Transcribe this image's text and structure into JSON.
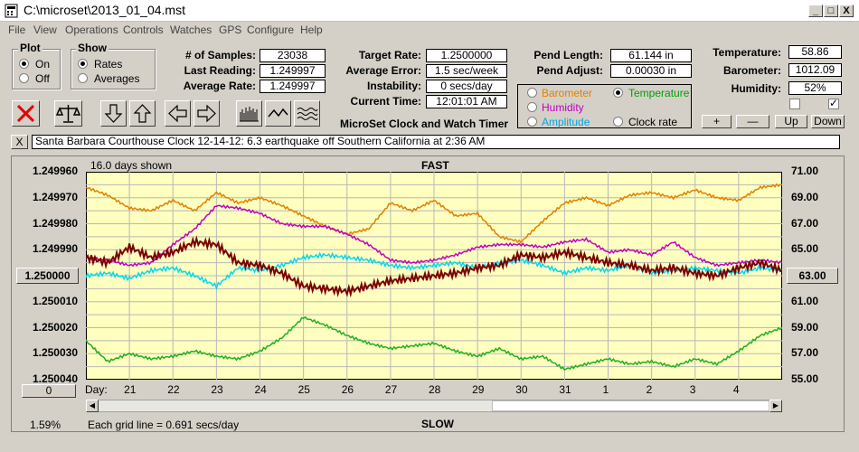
{
  "window": {
    "title": "C:\\microset\\2013_01_04.mst",
    "minimize": "_",
    "maximize": "□",
    "close": "X"
  },
  "menu": [
    "File",
    "View",
    "Operations",
    "Controls",
    "Watches",
    "GPS",
    "Configure",
    "Help"
  ],
  "plot_group": {
    "label": "Plot",
    "options": [
      "On",
      "Off"
    ],
    "selected": "On"
  },
  "show_group": {
    "label": "Show",
    "options": [
      "Rates",
      "Averages"
    ],
    "selected": "Rates"
  },
  "fields": {
    "num_samples": {
      "label": "# of Samples:",
      "value": "23038"
    },
    "last_reading": {
      "label": "Last Reading:",
      "value": "1.249997"
    },
    "average_rate": {
      "label": "Average Rate:",
      "value": "1.249997"
    },
    "target_rate": {
      "label": "Target Rate:",
      "value": "1.2500000"
    },
    "average_error": {
      "label": "Average Error:",
      "value": "1.5 sec/week"
    },
    "instability": {
      "label": "Instability:",
      "value": "0 secs/day"
    },
    "current_time": {
      "label": "Current Time:",
      "value": "12:01:01 AM"
    },
    "pend_length": {
      "label": "Pend Length:",
      "value": "61.144 in"
    },
    "pend_adjust": {
      "label": "Pend Adjust:",
      "value": "0.00030 in"
    },
    "temperature": {
      "label": "Temperature:",
      "value": "58.86"
    },
    "barometer": {
      "label": "Barometer:",
      "value": "1012.09"
    },
    "humidity": {
      "label": "Humidity:",
      "value": "52%"
    }
  },
  "app_caption": "MicroSet Clock and Watch Timer",
  "secondary": {
    "options": [
      {
        "label": "Barometer",
        "color": "#e08000",
        "selected": false
      },
      {
        "label": "Temperature",
        "color": "#00a000",
        "selected": true
      },
      {
        "label": "Humidity",
        "color": "#c000c0",
        "selected": false
      },
      {
        "label": "Amplitude",
        "color": "#00c0e0",
        "selected": false
      },
      {
        "label": "Clock rate",
        "color": "#000000",
        "selected": false
      }
    ]
  },
  "scale_buttons": [
    "+",
    "—",
    "Up",
    "Down"
  ],
  "checkboxes": [
    {
      "checked": false
    },
    {
      "checked": true
    }
  ],
  "note": {
    "close": "X",
    "text": "Santa Barbara Courthouse Clock        12-14-12: 6.3 earthquake off Southern California at 2:36 AM"
  },
  "chart": {
    "days_shown": "16.0 days shown",
    "top_label": "FAST",
    "bottom_label": "SLOW",
    "grid_note": "Each grid line = 0.691 secs/day",
    "percent": "1.59%",
    "left_button": "0",
    "center_left": "1.250000",
    "center_right": "63.00",
    "day_label": "Day:"
  },
  "chart_data": {
    "type": "line",
    "x_ticks": [
      "21",
      "22",
      "23",
      "24",
      "25",
      "26",
      "27",
      "28",
      "29",
      "30",
      "31",
      "1",
      "2",
      "3",
      "4"
    ],
    "y_left_ticks": [
      "1.249960",
      "1.249970",
      "1.249980",
      "1.249990",
      "1.250000",
      "1.250010",
      "1.250020",
      "1.250030",
      "1.250040"
    ],
    "y_right_ticks": [
      "71.00",
      "69.00",
      "67.00",
      "65.00",
      "63.00",
      "61.00",
      "59.00",
      "57.00",
      "55.00"
    ],
    "ylim_left": [
      1.24996,
      1.25004
    ],
    "ylim_right": [
      55.0,
      71.0
    ],
    "xlim": [
      0,
      16
    ],
    "series": [
      {
        "color": "#e08000",
        "axis": "right",
        "x": [
          0,
          0.5,
          1,
          1.5,
          2,
          2.5,
          3,
          3.5,
          4,
          4.5,
          5,
          5.5,
          6,
          6.5,
          7,
          7.5,
          8,
          8.5,
          9,
          9.5,
          10,
          10.5,
          11,
          11.5,
          12,
          12.5,
          13,
          13.5,
          14,
          14.5,
          15,
          15.5,
          16
        ],
        "y": [
          69.8,
          69.2,
          68.2,
          68.0,
          68.8,
          68.0,
          69.4,
          68.6,
          69.0,
          68.4,
          67.6,
          66.8,
          66.2,
          66.6,
          68.6,
          68.0,
          68.8,
          67.6,
          67.8,
          66.0,
          65.6,
          67.2,
          68.6,
          69.0,
          68.4,
          69.2,
          69.4,
          69.0,
          69.6,
          69.0,
          68.8,
          69.8,
          70.0
        ]
      },
      {
        "color": "#c000c0",
        "axis": "right",
        "x": [
          0,
          0.5,
          1,
          1.5,
          2,
          2.5,
          3,
          3.5,
          4,
          4.5,
          5,
          5.5,
          6,
          6.5,
          7,
          7.5,
          8,
          8.5,
          9,
          9.5,
          10,
          10.5,
          11,
          11.5,
          12,
          12.5,
          13,
          13.5,
          14,
          14.5,
          15,
          15.5,
          16
        ],
        "y": [
          64.4,
          64.2,
          63.8,
          64.0,
          65.4,
          66.6,
          68.4,
          68.2,
          67.8,
          67.0,
          66.8,
          66.8,
          66.2,
          65.4,
          64.2,
          64.0,
          64.2,
          64.6,
          65.2,
          65.4,
          65.4,
          65.2,
          65.6,
          65.8,
          64.8,
          65.0,
          64.6,
          65.6,
          64.4,
          63.8,
          64.0,
          64.2,
          64.0
        ]
      },
      {
        "color": "#00d8f0",
        "axis": "right",
        "x": [
          0,
          0.5,
          1,
          1.5,
          2,
          2.5,
          3,
          3.5,
          4,
          4.5,
          5,
          5.5,
          6,
          6.5,
          7,
          7.5,
          8,
          8.5,
          9,
          9.5,
          10,
          10.5,
          11,
          11.5,
          12,
          12.5,
          13,
          13.5,
          14,
          14.5,
          15,
          15.5,
          16
        ],
        "y": [
          63.0,
          63.2,
          62.8,
          63.4,
          63.6,
          63.0,
          62.2,
          63.6,
          63.4,
          63.8,
          64.4,
          64.6,
          64.4,
          64.2,
          63.8,
          63.6,
          63.8,
          64.0,
          63.6,
          64.0,
          64.2,
          63.8,
          63.2,
          63.6,
          63.4,
          63.8,
          63.2,
          63.4,
          63.6,
          63.4,
          63.2,
          63.6,
          63.4
        ]
      },
      {
        "color": "#7a0000",
        "axis": "left",
        "x": [
          0,
          0.5,
          1,
          1.5,
          2,
          2.5,
          3,
          3.5,
          4,
          4.5,
          5,
          5.5,
          6,
          6.5,
          7,
          7.5,
          8,
          8.5,
          9,
          9.5,
          10,
          10.5,
          11,
          11.5,
          12,
          12.5,
          13,
          13.5,
          14,
          14.5,
          15,
          15.5,
          16
        ],
        "y": [
          1.249993,
          1.249995,
          1.249989,
          1.249993,
          1.249991,
          1.249987,
          1.249988,
          1.249995,
          1.249996,
          1.249999,
          1.250004,
          1.250005,
          1.250006,
          1.250004,
          1.250002,
          1.250001,
          1.25,
          1.249999,
          1.249997,
          1.249996,
          1.249992,
          1.249993,
          1.249991,
          1.249993,
          1.249995,
          1.249996,
          1.249998,
          1.249997,
          1.249999,
          1.25,
          1.249997,
          1.249995,
          1.249998
        ]
      },
      {
        "color": "#20b020",
        "axis": "right",
        "x": [
          0,
          0.5,
          1,
          1.5,
          2,
          2.5,
          3,
          3.5,
          4,
          4.5,
          5,
          5.5,
          6,
          6.5,
          7,
          7.5,
          8,
          8.5,
          9,
          9.5,
          10,
          10.5,
          11,
          11.5,
          12,
          12.5,
          13,
          13.5,
          14,
          14.5,
          15,
          15.5,
          16
        ],
        "y": [
          58.0,
          56.4,
          57.0,
          56.6,
          56.8,
          57.2,
          56.8,
          56.6,
          57.2,
          58.2,
          59.8,
          59.2,
          58.4,
          57.8,
          57.4,
          57.6,
          57.8,
          57.2,
          56.8,
          57.4,
          56.6,
          56.8,
          55.8,
          56.2,
          56.6,
          56.2,
          56.4,
          56.0,
          56.6,
          56.2,
          57.2,
          58.4,
          59.0
        ]
      }
    ]
  }
}
